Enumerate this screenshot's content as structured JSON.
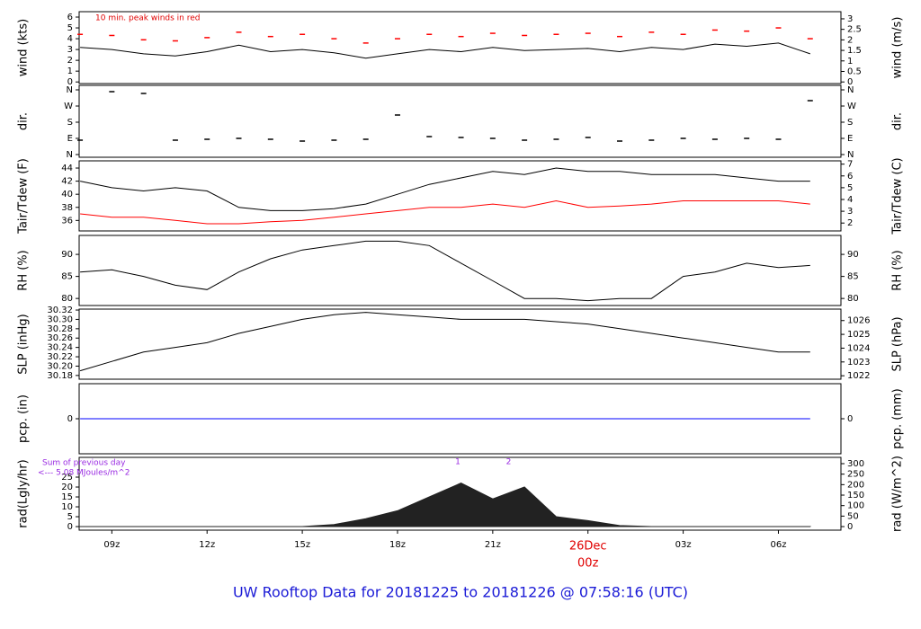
{
  "chart_data": [
    {
      "type": "line",
      "ylabel": "wind (kts)",
      "y2label": "wind (m/s)",
      "annotation": "10 min. peak winds in red",
      "x": [
        8,
        9,
        10,
        11,
        12,
        13,
        14,
        15,
        16,
        17,
        18,
        19,
        20,
        21,
        22,
        23,
        24,
        25,
        26,
        27,
        28,
        29,
        30,
        31
      ],
      "xlim": [
        7.97,
        31.97
      ],
      "ylim": [
        -0.15,
        6.5
      ],
      "yticks": [
        0,
        1,
        2,
        3,
        4,
        5,
        6
      ],
      "y2lim": [
        -0.077,
        3.34
      ],
      "y2ticks": [
        0,
        0.5,
        1,
        1.5,
        2,
        2.5,
        3
      ],
      "series": [
        {
          "color": "#000000",
          "marker": "line",
          "values": [
            3.2,
            3.0,
            2.6,
            2.4,
            2.8,
            3.4,
            2.8,
            3.0,
            2.7,
            2.2,
            2.6,
            3.0,
            2.8,
            3.2,
            2.9,
            3.0,
            3.1,
            2.8,
            3.2,
            3.0,
            3.5,
            3.3,
            3.6,
            2.6
          ]
        },
        {
          "color": "#ff0000",
          "marker": "dash",
          "values": [
            4.4,
            4.3,
            3.9,
            3.8,
            4.1,
            4.6,
            4.2,
            4.4,
            4.0,
            3.6,
            4.0,
            4.4,
            4.2,
            4.5,
            4.3,
            4.4,
            4.5,
            4.2,
            4.6,
            4.4,
            4.8,
            4.7,
            5.0,
            4.0
          ]
        }
      ]
    },
    {
      "type": "line",
      "ylabel": "dir.",
      "y2label": "dir.",
      "x": [
        8,
        9,
        10,
        11,
        12,
        13,
        14,
        15,
        16,
        17,
        18,
        19,
        20,
        21,
        22,
        23,
        24,
        25,
        26,
        27,
        28,
        29,
        30,
        31
      ],
      "xlim": [
        7.97,
        31.97
      ],
      "ylim": [
        -15,
        385
      ],
      "yticks": [
        {
          "value": 0,
          "label": "N"
        },
        {
          "value": 90,
          "label": "E"
        },
        {
          "value": 180,
          "label": "S"
        },
        {
          "value": 270,
          "label": "W"
        },
        {
          "value": 360,
          "label": "N"
        }
      ],
      "y2lim": [
        -15,
        385
      ],
      "y2ticks": [
        {
          "value": 0,
          "label": "N"
        },
        {
          "value": 90,
          "label": "E"
        },
        {
          "value": 180,
          "label": "S"
        },
        {
          "value": 270,
          "label": "W"
        },
        {
          "value": 360,
          "label": "N"
        }
      ],
      "series": [
        {
          "color": "#000000",
          "marker": "dash",
          "values": [
            80,
            350,
            340,
            80,
            85,
            90,
            85,
            75,
            80,
            85,
            220,
            100,
            95,
            90,
            80,
            85,
            95,
            75,
            80,
            90,
            85,
            90,
            85,
            300
          ]
        }
      ]
    },
    {
      "type": "line",
      "ylabel": "Tair/Tdew (F)",
      "y2label": "Tair/Tdew (C)",
      "x": [
        8,
        9,
        10,
        11,
        12,
        13,
        14,
        15,
        16,
        17,
        18,
        19,
        20,
        21,
        22,
        23,
        24,
        25,
        26,
        27,
        28,
        29,
        30,
        31
      ],
      "xlim": [
        7.97,
        31.97
      ],
      "ylim": [
        34.4,
        45.1
      ],
      "yticks": [
        36,
        38,
        40,
        42,
        44
      ],
      "y2lim": [
        1.33,
        7.28
      ],
      "y2ticks": [
        2,
        3,
        4,
        5,
        6,
        7
      ],
      "series": [
        {
          "color": "#000000",
          "marker": "line",
          "values": [
            42,
            41,
            40.5,
            41,
            40.5,
            38,
            37.5,
            37.5,
            37.8,
            38.5,
            40,
            41.5,
            42.5,
            43.5,
            43,
            44,
            43.5,
            43.5,
            43,
            43,
            43,
            42.5,
            42,
            42
          ]
        },
        {
          "color": "#ff0000",
          "marker": "line",
          "values": [
            37,
            36.5,
            36.5,
            36,
            35.5,
            35.5,
            35.8,
            36,
            36.5,
            37,
            37.5,
            38,
            38,
            38.5,
            38,
            39,
            38,
            38.2,
            38.5,
            39,
            39,
            39,
            39,
            38.5
          ]
        }
      ]
    },
    {
      "type": "line",
      "ylabel": "RH (%)",
      "y2label": "RH (%)",
      "x": [
        8,
        9,
        10,
        11,
        12,
        13,
        14,
        15,
        16,
        17,
        18,
        19,
        20,
        21,
        22,
        23,
        24,
        25,
        26,
        27,
        28,
        29,
        30,
        31
      ],
      "xlim": [
        7.97,
        31.97
      ],
      "ylim": [
        78.4,
        94.3
      ],
      "yticks": [
        80,
        85,
        90
      ],
      "y2lim": [
        78.4,
        94.3
      ],
      "y2ticks": [
        80,
        85,
        90
      ],
      "series": [
        {
          "color": "#000000",
          "marker": "line",
          "values": [
            86,
            86.5,
            85,
            83,
            82,
            86,
            89,
            91,
            92,
            93,
            93,
            92,
            88,
            84,
            80,
            80,
            79.5,
            80,
            80,
            85,
            86,
            88,
            87,
            87.5
          ]
        }
      ]
    },
    {
      "type": "line",
      "ylabel": "SLP (inHg)",
      "y2label": "SLP (hPa)",
      "x": [
        8,
        9,
        10,
        11,
        12,
        13,
        14,
        15,
        16,
        17,
        18,
        19,
        20,
        21,
        22,
        23,
        24,
        25,
        26,
        27,
        28,
        29,
        30,
        31
      ],
      "xlim": [
        7.97,
        31.97
      ],
      "ylim": [
        30.172,
        30.322
      ],
      "yticks": [
        30.18,
        {
          "value": 30.2,
          "label": "30.20"
        },
        30.22,
        30.24,
        30.26,
        30.28,
        {
          "value": 30.3,
          "label": "30.30"
        },
        30.32
      ],
      "y2lim": [
        1021.75,
        1026.83
      ],
      "y2ticks": [
        1022,
        1023,
        1024,
        1025,
        1026
      ],
      "series": [
        {
          "color": "#000000",
          "marker": "line",
          "values": [
            30.19,
            30.21,
            30.23,
            30.24,
            30.25,
            30.27,
            30.285,
            30.3,
            30.31,
            30.315,
            30.31,
            30.305,
            30.3,
            30.3,
            30.3,
            30.295,
            30.29,
            30.28,
            30.27,
            30.26,
            30.25,
            30.24,
            30.23,
            30.23
          ]
        }
      ]
    },
    {
      "type": "line",
      "ylabel": "pcp. (in)",
      "y2label": "pcp. (mm)",
      "x": [
        8,
        9,
        10,
        11,
        12,
        13,
        14,
        15,
        16,
        17,
        18,
        19,
        20,
        21,
        22,
        23,
        24,
        25,
        26,
        27,
        28,
        29,
        30,
        31
      ],
      "xlim": [
        7.97,
        31.97
      ],
      "ylim": [
        -1,
        1
      ],
      "yticks": [
        0
      ],
      "y2lim": [
        -1,
        1
      ],
      "y2ticks": [
        0
      ],
      "series": [
        {
          "color": "#0000ff",
          "marker": "line",
          "values": [
            0,
            0,
            0,
            0,
            0,
            0,
            0,
            0,
            0,
            0,
            0,
            0,
            0,
            0,
            0,
            0,
            0,
            0,
            0,
            0,
            0,
            0,
            0,
            0
          ]
        }
      ]
    },
    {
      "type": "area",
      "ylabel": "rad(Lgly/hr)",
      "y2label": "rad (W/m^2)",
      "notes": [
        "Sum of previous day",
        "<--- 5.08 MJoules/m^2"
      ],
      "peaks": [
        "1",
        "2"
      ],
      "x": [
        8,
        9,
        10,
        11,
        12,
        13,
        14,
        15,
        16,
        17,
        18,
        19,
        20,
        21,
        22,
        23,
        24,
        25,
        26,
        27,
        28,
        29,
        30,
        31
      ],
      "xlim": [
        7.97,
        31.97
      ],
      "xticks": [
        {
          "value": 9,
          "label": "09z"
        },
        {
          "value": 12,
          "label": "12z"
        },
        {
          "value": 15,
          "label": "15z"
        },
        {
          "value": 18,
          "label": "18z"
        },
        {
          "value": 21,
          "label": "21z"
        },
        {
          "value": 24,
          "label": "00z"
        },
        {
          "value": 27,
          "label": "03z"
        },
        {
          "value": 30,
          "label": "06z"
        }
      ],
      "date_label": {
        "value": 24,
        "label": "26Dec"
      },
      "ylim": [
        -1.8,
        35
      ],
      "yticks": [
        0,
        5,
        10,
        15,
        20,
        25
      ],
      "y2lim": [
        -17,
        330
      ],
      "y2ticks": [
        0,
        50,
        100,
        150,
        200,
        250,
        300
      ],
      "series": [
        {
          "color": "#222222",
          "marker": "area",
          "values": [
            0,
            0,
            0,
            0,
            0,
            0,
            0,
            0,
            1,
            4,
            8,
            15,
            22,
            14,
            20,
            5,
            3,
            0.5,
            0,
            0,
            0,
            0,
            0,
            0
          ]
        }
      ]
    }
  ],
  "footer": "UW Rooftop Data for 20181225  to  20181226 @ 07:58:16  (UTC)"
}
